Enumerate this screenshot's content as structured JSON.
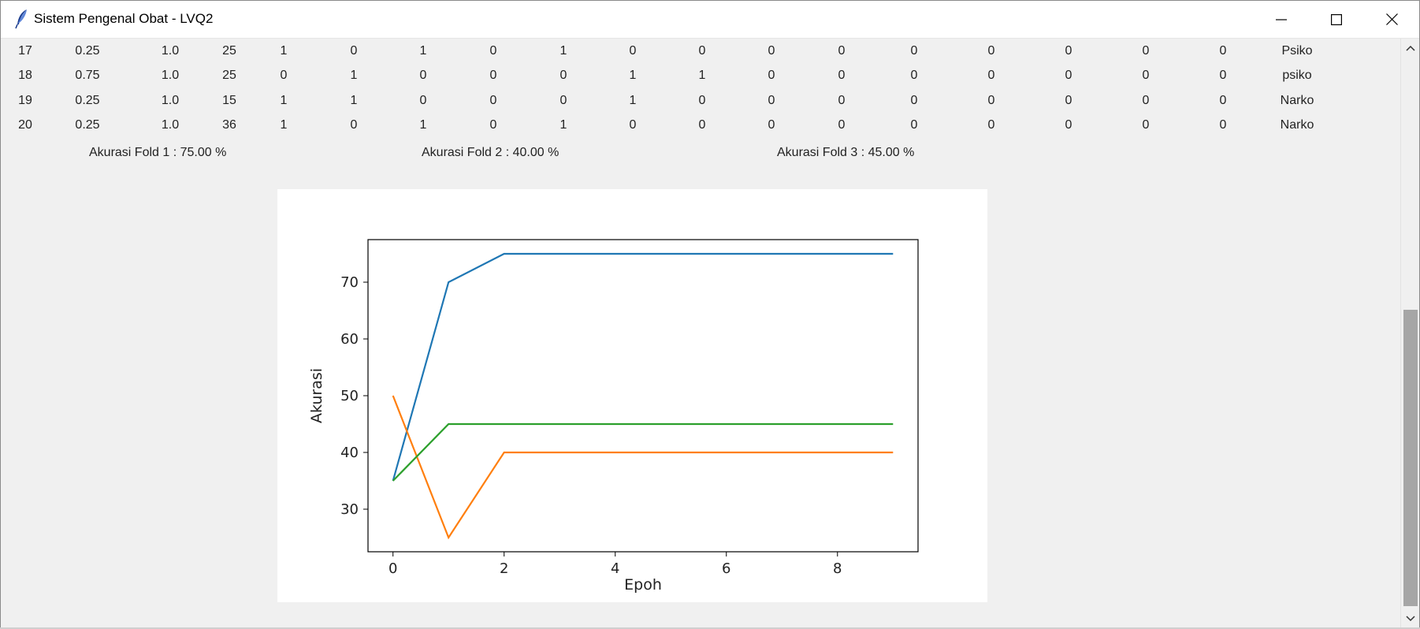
{
  "window": {
    "title": "Sistem Pengenal Obat - LVQ2"
  },
  "table": {
    "rows": [
      [
        "17",
        "0.25",
        "1.0",
        "25",
        "1",
        "0",
        "1",
        "0",
        "1",
        "0",
        "0",
        "0",
        "0",
        "0",
        "0",
        "0",
        "0",
        "0",
        "Psiko"
      ],
      [
        "18",
        "0.75",
        "1.0",
        "25",
        "0",
        "1",
        "0",
        "0",
        "0",
        "1",
        "1",
        "0",
        "0",
        "0",
        "0",
        "0",
        "0",
        "0",
        "psiko"
      ],
      [
        "19",
        "0.25",
        "1.0",
        "15",
        "1",
        "1",
        "0",
        "0",
        "0",
        "1",
        "0",
        "0",
        "0",
        "0",
        "0",
        "0",
        "0",
        "0",
        "Narko"
      ],
      [
        "20",
        "0.25",
        "1.0",
        "36",
        "1",
        "0",
        "1",
        "0",
        "1",
        "0",
        "0",
        "0",
        "0",
        "0",
        "0",
        "0",
        "0",
        "0",
        "Narko"
      ]
    ]
  },
  "accuracy": {
    "fold1": "Akurasi Fold 1 : 75.00 %",
    "fold2": "Akurasi Fold 2 : 40.00 %",
    "fold3": "Akurasi Fold 3 : 45.00 %"
  },
  "chart_data": {
    "type": "line",
    "xlabel": "Epoh",
    "ylabel": "Akurasi",
    "xlim": [
      -0.45,
      9.45
    ],
    "ylim": [
      22.5,
      77.5
    ],
    "xticks": [
      0,
      2,
      4,
      6,
      8
    ],
    "yticks": [
      30,
      40,
      50,
      60,
      70
    ],
    "grid": false,
    "x": [
      0,
      1,
      2,
      3,
      4,
      5,
      6,
      7,
      8,
      9
    ],
    "series": [
      {
        "color": "#1f77b4",
        "values": [
          35,
          70,
          75,
          75,
          75,
          75,
          75,
          75,
          75,
          75
        ]
      },
      {
        "color": "#ff7f0e",
        "values": [
          50,
          25,
          40,
          40,
          40,
          40,
          40,
          40,
          40,
          40
        ]
      },
      {
        "color": "#2ca02c",
        "values": [
          35,
          45,
          45,
          45,
          45,
          45,
          45,
          45,
          45,
          45
        ]
      }
    ]
  }
}
